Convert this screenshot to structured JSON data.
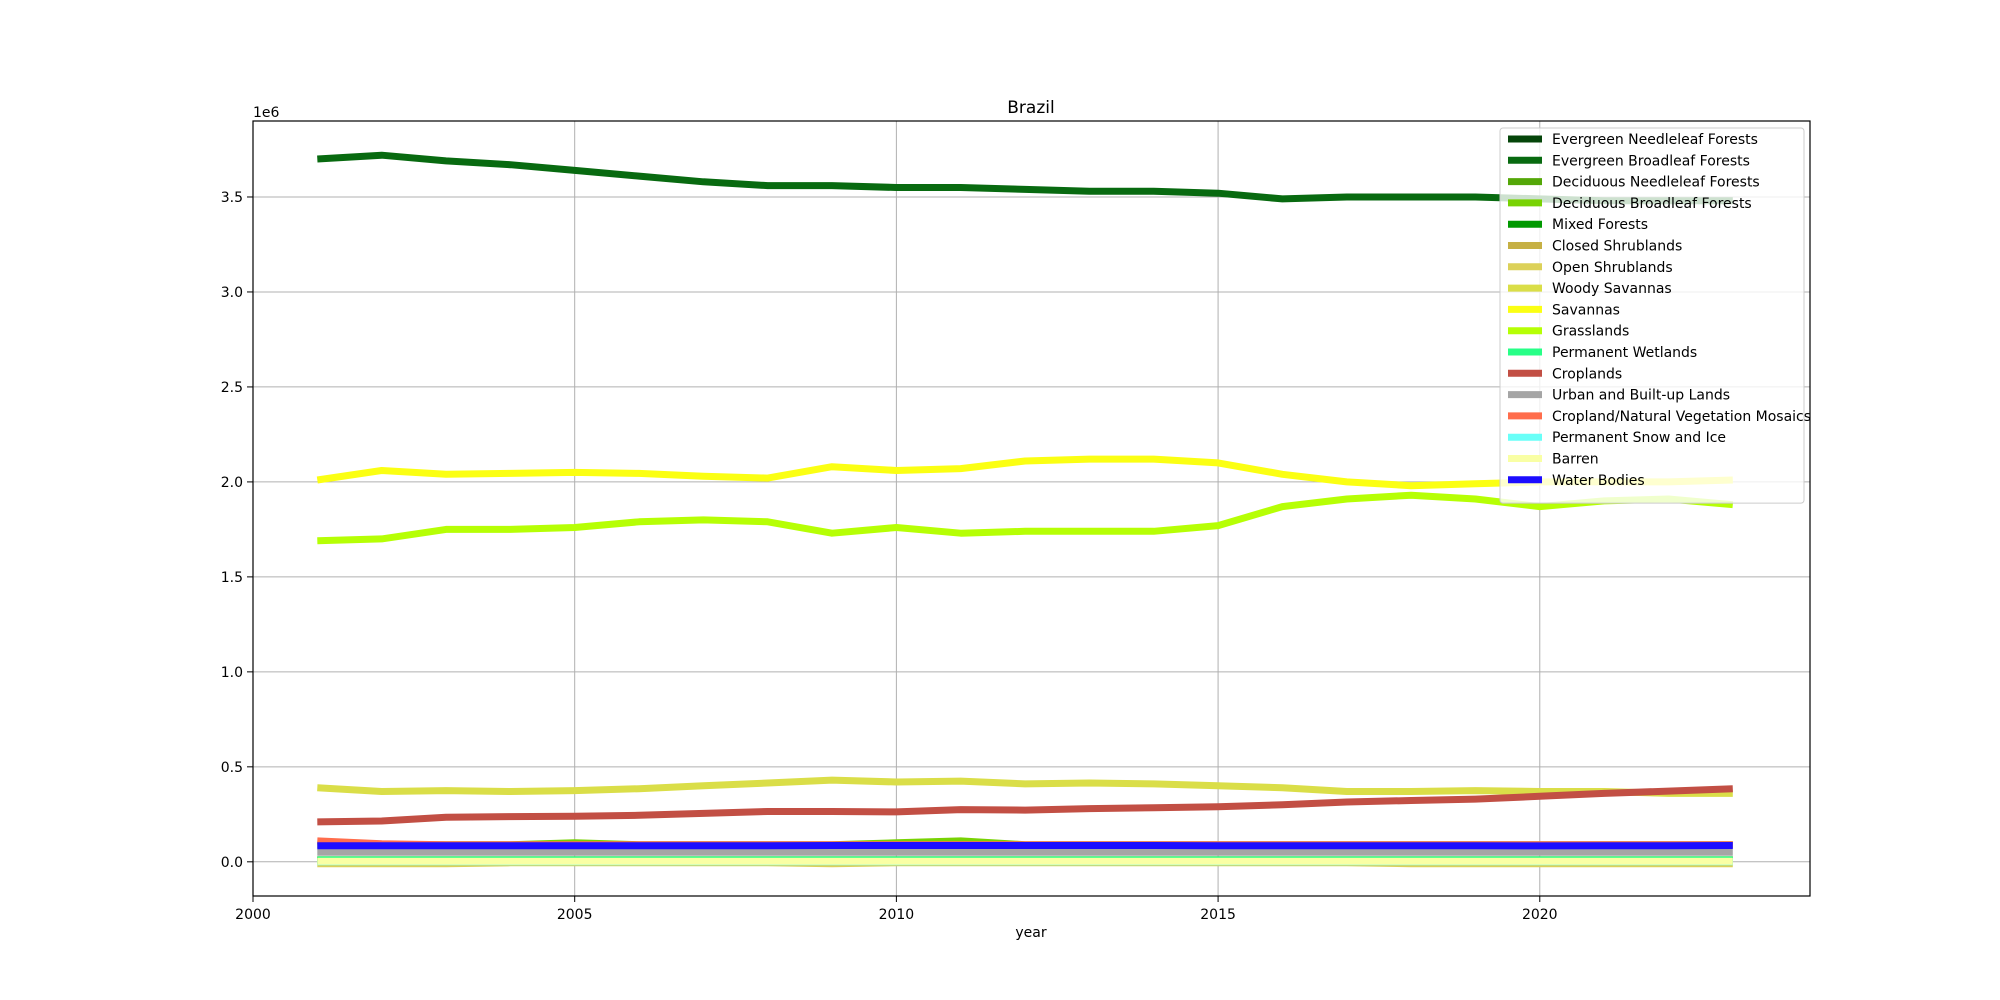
{
  "chart_data": {
    "type": "line",
    "title": "Brazil",
    "xlabel": "year",
    "ylabel": "",
    "y_offset_label": "1e6",
    "xlim": [
      2000.0,
      2024.2
    ],
    "ylim": [
      -0.18,
      3.9
    ],
    "x_ticks": [
      2000,
      2005,
      2010,
      2015,
      2020
    ],
    "y_ticks": [
      0.0,
      0.5,
      1.0,
      1.5,
      2.0,
      2.5,
      3.0,
      3.5
    ],
    "y_tick_labels": [
      "0.0",
      "0.5",
      "1.0",
      "1.5",
      "2.0",
      "2.5",
      "3.0",
      "3.5"
    ],
    "grid": true,
    "legend_position": "top-right",
    "x": [
      2001,
      2002,
      2003,
      2004,
      2005,
      2006,
      2007,
      2008,
      2009,
      2010,
      2011,
      2012,
      2013,
      2014,
      2015,
      2016,
      2017,
      2018,
      2019,
      2020,
      2021,
      2022,
      2023
    ],
    "series": [
      {
        "name": "Evergreen Needleleaf Forests",
        "color": "#05450a",
        "values": [
          0.005,
          0.005,
          0.005,
          0.005,
          0.005,
          0.005,
          0.005,
          0.005,
          0.005,
          0.005,
          0.005,
          0.005,
          0.005,
          0.005,
          0.005,
          0.005,
          0.005,
          0.005,
          0.005,
          0.005,
          0.005,
          0.005,
          0.005
        ]
      },
      {
        "name": "Evergreen Broadleaf Forests",
        "color": "#086a10",
        "values": [
          3.7,
          3.72,
          3.69,
          3.67,
          3.64,
          3.61,
          3.58,
          3.56,
          3.56,
          3.55,
          3.55,
          3.54,
          3.53,
          3.53,
          3.52,
          3.49,
          3.5,
          3.5,
          3.5,
          3.49,
          3.48,
          3.48,
          3.48
        ]
      },
      {
        "name": "Deciduous Needleleaf Forests",
        "color": "#54a708",
        "values": [
          0.002,
          0.002,
          0.002,
          0.002,
          0.002,
          0.002,
          0.002,
          0.002,
          0.002,
          0.002,
          0.002,
          0.002,
          0.002,
          0.002,
          0.002,
          0.002,
          0.002,
          0.002,
          0.002,
          0.002,
          0.002,
          0.002,
          0.002
        ]
      },
      {
        "name": "Deciduous Broadleaf Forests",
        "color": "#78d203",
        "values": [
          0.09,
          0.09,
          0.09,
          0.09,
          0.1,
          0.09,
          0.09,
          0.09,
          0.09,
          0.1,
          0.11,
          0.09,
          0.09,
          0.09,
          0.09,
          0.09,
          0.09,
          0.09,
          0.09,
          0.09,
          0.09,
          0.09,
          0.09
        ]
      },
      {
        "name": "Mixed Forests",
        "color": "#009900",
        "values": [
          0.01,
          0.01,
          0.01,
          0.01,
          0.01,
          0.01,
          0.01,
          0.01,
          0.01,
          0.01,
          0.01,
          0.01,
          0.01,
          0.01,
          0.01,
          0.01,
          0.01,
          0.01,
          0.01,
          0.01,
          0.01,
          0.01,
          0.01
        ]
      },
      {
        "name": "Closed Shrublands",
        "color": "#c6b044",
        "values": [
          0.01,
          0.01,
          0.01,
          0.01,
          0.01,
          0.01,
          0.01,
          0.01,
          0.01,
          0.01,
          0.01,
          0.01,
          0.01,
          0.01,
          0.01,
          0.01,
          0.01,
          0.01,
          0.01,
          0.01,
          0.01,
          0.01,
          0.01
        ]
      },
      {
        "name": "Open Shrublands",
        "color": "#dcd159",
        "values": [
          -0.01,
          -0.01,
          -0.01,
          -0.005,
          -0.005,
          -0.005,
          -0.005,
          -0.005,
          -0.01,
          -0.005,
          -0.005,
          -0.005,
          -0.005,
          -0.005,
          -0.005,
          -0.005,
          -0.005,
          -0.01,
          -0.01,
          -0.01,
          -0.01,
          -0.01,
          -0.01
        ]
      },
      {
        "name": "Woody Savannas",
        "color": "#dade48",
        "values": [
          0.39,
          0.37,
          0.375,
          0.37,
          0.375,
          0.385,
          0.4,
          0.415,
          0.43,
          0.42,
          0.425,
          0.41,
          0.415,
          0.41,
          0.4,
          0.39,
          0.37,
          0.37,
          0.375,
          0.37,
          0.37,
          0.36,
          0.36
        ]
      },
      {
        "name": "Savannas",
        "color": "#fbff13",
        "values": [
          2.01,
          2.06,
          2.04,
          2.045,
          2.05,
          2.045,
          2.03,
          2.02,
          2.08,
          2.06,
          2.07,
          2.11,
          2.12,
          2.12,
          2.1,
          2.04,
          2.0,
          1.98,
          1.99,
          2.0,
          2.0,
          2.0,
          2.01
        ]
      },
      {
        "name": "Grasslands",
        "color": "#b6ff05",
        "values": [
          1.69,
          1.7,
          1.75,
          1.75,
          1.76,
          1.79,
          1.8,
          1.79,
          1.73,
          1.76,
          1.73,
          1.74,
          1.74,
          1.74,
          1.77,
          1.87,
          1.91,
          1.93,
          1.91,
          1.87,
          1.9,
          1.91,
          1.88
        ]
      },
      {
        "name": "Permanent Wetlands",
        "color": "#27ff87",
        "values": [
          0.01,
          0.01,
          0.01,
          0.01,
          0.01,
          0.01,
          0.01,
          0.01,
          0.01,
          0.01,
          0.01,
          0.01,
          0.01,
          0.01,
          0.01,
          0.01,
          0.01,
          0.01,
          0.01,
          0.01,
          0.01,
          0.01,
          0.01
        ]
      },
      {
        "name": "Croplands",
        "color": "#c24f44",
        "values": [
          0.21,
          0.215,
          0.235,
          0.238,
          0.24,
          0.245,
          0.255,
          0.265,
          0.265,
          0.263,
          0.275,
          0.272,
          0.28,
          0.285,
          0.29,
          0.3,
          0.315,
          0.323,
          0.33,
          0.345,
          0.36,
          0.372,
          0.385
        ]
      },
      {
        "name": "Urban and Built-up Lands",
        "color": "#a5a5a5",
        "values": [
          0.05,
          0.05,
          0.05,
          0.05,
          0.05,
          0.05,
          0.05,
          0.05,
          0.05,
          0.05,
          0.05,
          0.05,
          0.05,
          0.05,
          0.05,
          0.05,
          0.05,
          0.05,
          0.05,
          0.05,
          0.05,
          0.05,
          0.05
        ]
      },
      {
        "name": "Cropland/Natural Vegetation Mosaics",
        "color": "#ff6d4c",
        "values": [
          0.11,
          0.095,
          0.09,
          0.09,
          0.09,
          0.09,
          0.09,
          0.09,
          0.09,
          0.09,
          0.09,
          0.09,
          0.09,
          0.09,
          0.09,
          0.09,
          0.09,
          0.09,
          0.09,
          0.09,
          0.09,
          0.09,
          0.09
        ]
      },
      {
        "name": "Permanent Snow and Ice",
        "color": "#69fff8",
        "values": [
          0,
          0,
          0,
          0,
          0,
          0,
          0,
          0,
          0,
          0,
          0,
          0,
          0,
          0,
          0,
          0,
          0,
          0,
          0,
          0,
          0,
          0,
          0
        ]
      },
      {
        "name": "Barren",
        "color": "#f9ffa4",
        "values": [
          0.003,
          0.003,
          0.003,
          0.003,
          0.003,
          0.003,
          0.003,
          0.003,
          0.003,
          0.003,
          0.003,
          0.003,
          0.003,
          0.003,
          0.003,
          0.003,
          0.003,
          0.003,
          0.003,
          0.003,
          0.003,
          0.003,
          0.003
        ]
      },
      {
        "name": "Water Bodies",
        "color": "#1c0dff",
        "values": [
          0.085,
          0.085,
          0.085,
          0.085,
          0.085,
          0.085,
          0.085,
          0.085,
          0.086,
          0.086,
          0.086,
          0.086,
          0.086,
          0.086,
          0.085,
          0.085,
          0.085,
          0.085,
          0.085,
          0.084,
          0.085,
          0.085,
          0.086
        ]
      }
    ]
  }
}
